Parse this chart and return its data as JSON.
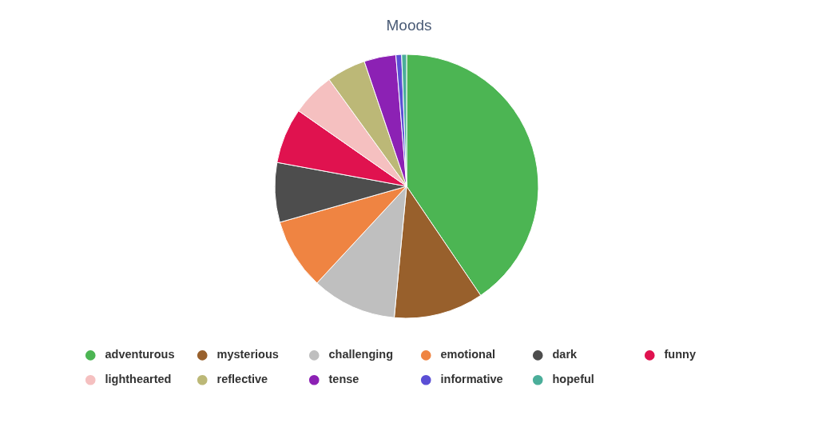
{
  "chart_data": {
    "type": "pie",
    "title": "Moods",
    "categories": [
      "adventurous",
      "mysterious",
      "challenging",
      "emotional",
      "dark",
      "funny",
      "lighthearted",
      "reflective",
      "tense",
      "informative",
      "hopeful"
    ],
    "values": [
      40.5,
      11,
      10.4,
      8.7,
      7.3,
      6.8,
      5.3,
      4.8,
      3.9,
      0.7,
      0.6
    ],
    "colors": [
      "#4cb553",
      "#98602c",
      "#bfbfbf",
      "#ef8442",
      "#4d4d4d",
      "#e0124f",
      "#f5c0c0",
      "#bcb877",
      "#8c21b4",
      "#5b4fd5",
      "#4bae9a"
    ],
    "legend": "bottom"
  }
}
